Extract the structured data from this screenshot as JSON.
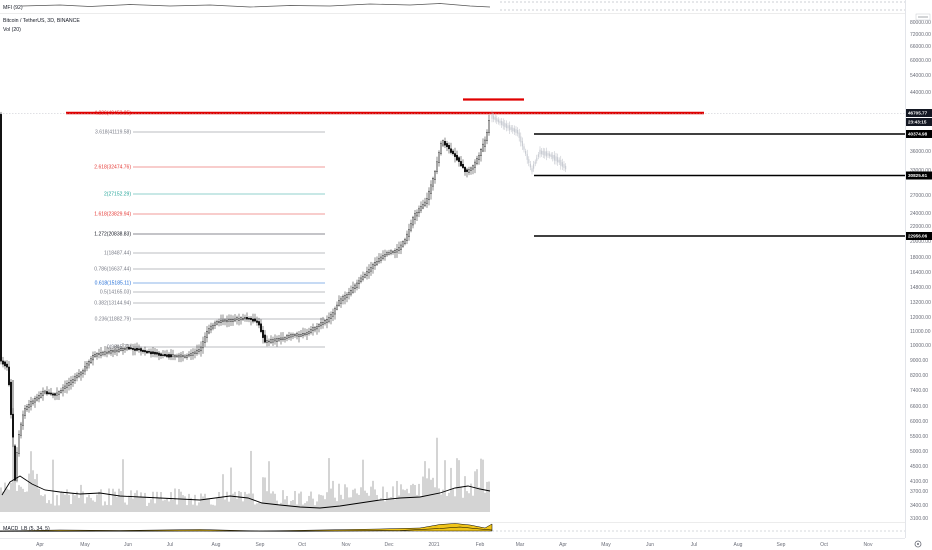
{
  "header": {
    "mfi_label": "MFI (92)",
    "symbol_title": "Bitcoin / TetherUS, 3D, BINANCE",
    "vol_label": "Vol (20)",
    "macd_label": "MACD_LB (5, 34, 5)"
  },
  "price_axis": {
    "ticks": [
      "80000.00",
      "72000.00",
      "66000.00",
      "60000.00",
      "54000.00",
      "44000.00",
      "36000.00",
      "33000.00",
      "27000.00",
      "24000.00",
      "22000.00",
      "20000.00",
      "18000.00",
      "16400.00",
      "14800.00",
      "13200.00",
      "12000.00",
      "11000.00",
      "10000.00",
      "9000.00",
      "8200.00",
      "7400.00",
      "6600.00",
      "6000.00",
      "5500.00",
      "5000.00",
      "4500.00",
      "4100.00",
      "3700.00",
      "3400.00",
      "3100.00"
    ],
    "badges": [
      {
        "text": "46705.77",
        "color": "#131722"
      },
      {
        "text": "23:43:15",
        "color": "#131722"
      },
      {
        "text": "40374.98",
        "color": "#000000"
      },
      {
        "text": "30825.61",
        "color": "#000000"
      },
      {
        "text": "22956.06",
        "color": "#000000"
      }
    ]
  },
  "time_axis": {
    "labels": [
      "Apr",
      "May",
      "Jun",
      "Jul",
      "Aug",
      "Sep",
      "Oct",
      "Nov",
      "Dec",
      "2021",
      "Feb",
      "Mar",
      "Apr",
      "May",
      "Jun",
      "Jul",
      "Aug",
      "Sep",
      "Oct",
      "Nov"
    ]
  },
  "fib_levels": [
    {
      "label": "4.236(49453.25)",
      "color": "#e53935"
    },
    {
      "label": "3.618(41119.58)",
      "color": "#787b86"
    },
    {
      "label": "2.618(32474.76)",
      "color": "#e53935"
    },
    {
      "label": "2(27152.29)",
      "color": "#26a69a"
    },
    {
      "label": "1.618(23829.94)",
      "color": "#e53935"
    },
    {
      "label": "1.272(20838.83)",
      "color": "#131722"
    },
    {
      "label": "1(18487.44)",
      "color": "#787b86"
    },
    {
      "label": "0.786(16637.44)",
      "color": "#787b86"
    },
    {
      "label": "0.618(15185.11)",
      "color": "#1e6bd6"
    },
    {
      "label": "0.5(14165.03)",
      "color": "#787b86"
    },
    {
      "label": "0.382(13144.94)",
      "color": "#787b86"
    },
    {
      "label": "0.236(11882.79)",
      "color": "#787b86"
    },
    {
      "label": "0(9845.77)",
      "color": "#787b86"
    }
  ],
  "colors": {
    "resistance_line": "#e00000",
    "support_line": "#000000",
    "candle": "#000000",
    "projection": "#b2b5be",
    "volume": "#c9c9c9",
    "volume_ma": "#000000",
    "macd_fill": "#f0c419"
  },
  "chart_data": {
    "type": "candlestick",
    "title": "Bitcoin / TetherUS, 3D, BINANCE",
    "x_range": [
      "2020-03",
      "2021-11"
    ],
    "y_scale": "log",
    "y_range": [
      3100,
      85000
    ],
    "key_levels": {
      "resistance_red": 49453.25,
      "supports_black": [
        40374.98,
        30825.61,
        22956.06
      ],
      "last_price": 46705.77
    },
    "price_path_monthly": [
      {
        "month": "2020-03",
        "price": 6200
      },
      {
        "month": "2020-04",
        "price": 7500
      },
      {
        "month": "2020-05",
        "price": 9400
      },
      {
        "month": "2020-06",
        "price": 9200
      },
      {
        "month": "2020-07",
        "price": 9600
      },
      {
        "month": "2020-08",
        "price": 11600
      },
      {
        "month": "2020-09",
        "price": 10700
      },
      {
        "month": "2020-10",
        "price": 11400
      },
      {
        "month": "2020-11",
        "price": 17500
      },
      {
        "month": "2020-12",
        "price": 24000
      },
      {
        "month": "2021-01",
        "price": 34000
      },
      {
        "month": "2021-02",
        "price": 46705.77
      }
    ],
    "projection_path": [
      {
        "month": "2021-02",
        "price": 46705.77
      },
      {
        "month": "2021-03",
        "price": 36000
      },
      {
        "month": "2021-04",
        "price": 34500
      }
    ]
  }
}
